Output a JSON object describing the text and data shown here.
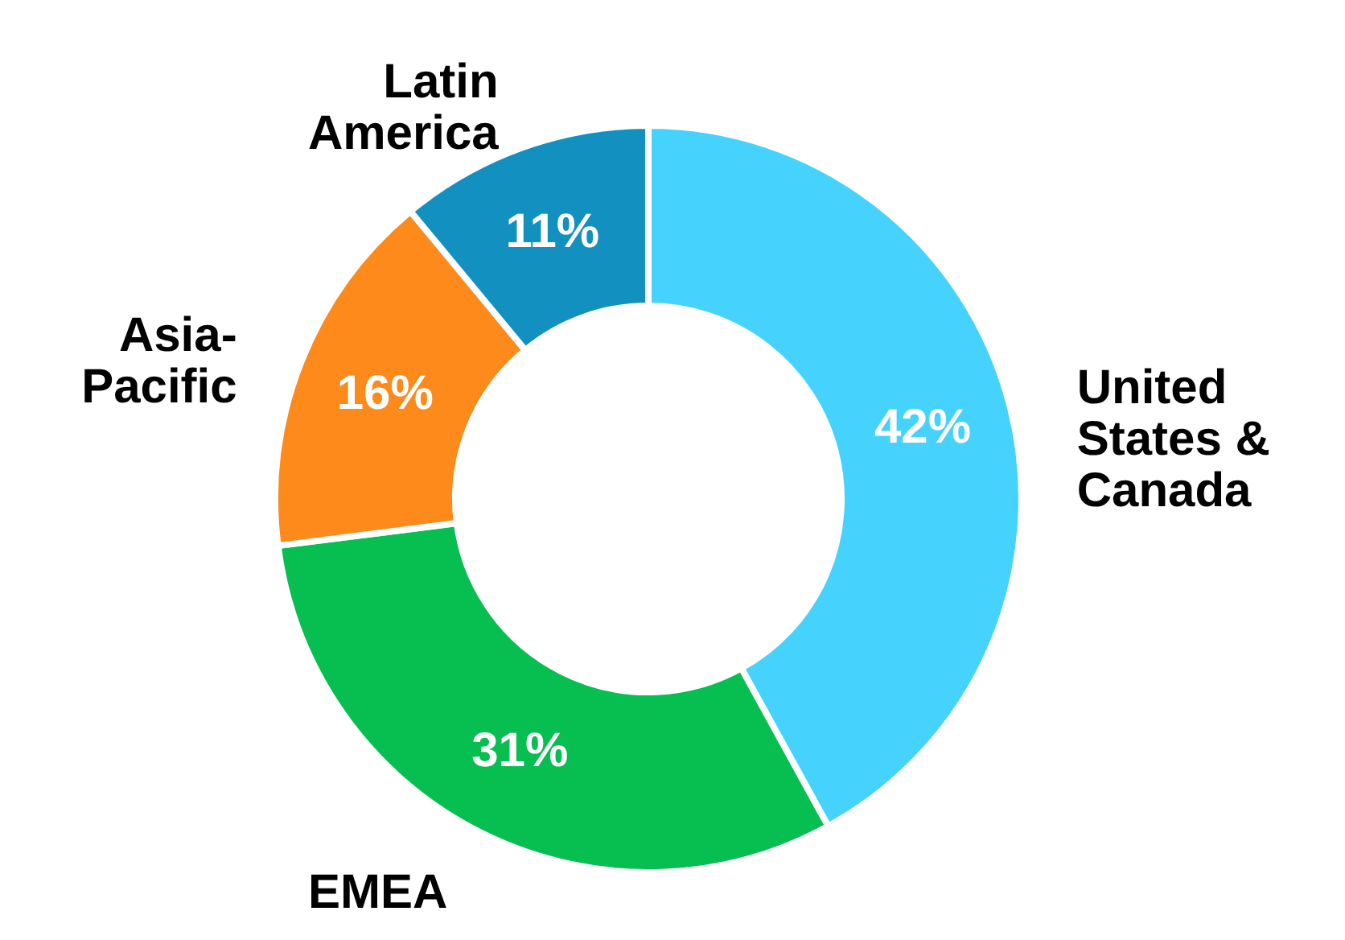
{
  "chart_data": {
    "type": "donut",
    "categories": [
      "United States & Canada",
      "EMEA",
      "Asia-Pacific",
      "Latin America"
    ],
    "values": [
      42,
      31,
      16,
      11
    ],
    "colors": [
      "#45d3fe",
      "#07be50",
      "#fd8a1b",
      "#1290c0"
    ],
    "value_labels": [
      "42%",
      "31%",
      "16%",
      "11%"
    ]
  }
}
